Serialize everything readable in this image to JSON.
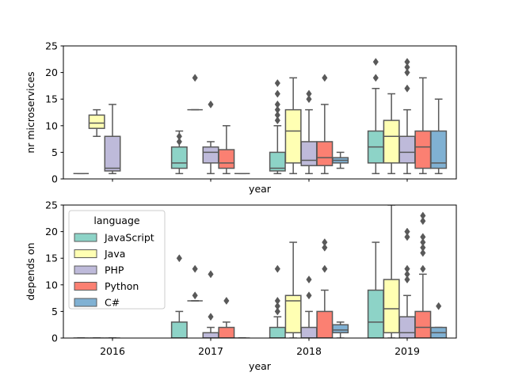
{
  "colors": {
    "JavaScript": "#8dd3c7",
    "Java": "#ffffb3",
    "PHP": "#bebada",
    "Python": "#fb8072",
    "C#": "#80b1d3",
    "line": "#595959"
  },
  "chart_data": [
    {
      "type": "box",
      "panel": "top",
      "xlabel": "year",
      "ylabel": "nr microservices",
      "ylim": [
        0,
        25
      ],
      "yticks": [
        0,
        5,
        10,
        15,
        20,
        25
      ],
      "categories": [
        "2016",
        "2017",
        "2018",
        "2019"
      ],
      "show_x_tick_labels": false,
      "legend": null,
      "series": [
        {
          "name": "JavaScript",
          "boxes": [
            {
              "year": "2016",
              "min": 1,
              "q1": 1,
              "median": 1,
              "q3": 1,
              "max": 1,
              "outliers": []
            },
            {
              "year": "2017",
              "min": 1,
              "q1": 2,
              "median": 3,
              "q3": 6,
              "max": 9,
              "outliers": [
                7,
                8
              ]
            },
            {
              "year": "2018",
              "min": 1,
              "q1": 1.5,
              "median": 2,
              "q3": 5,
              "max": 10,
              "outliers": [
                11,
                12,
                13,
                14,
                16,
                18
              ]
            },
            {
              "year": "2019",
              "min": 1,
              "q1": 3,
              "median": 6,
              "q3": 9,
              "max": 17,
              "outliers": [
                19,
                22
              ]
            }
          ]
        },
        {
          "name": "Java",
          "boxes": [
            {
              "year": "2016",
              "min": 8,
              "q1": 9.5,
              "median": 10.5,
              "q3": 12,
              "max": 13,
              "outliers": []
            },
            {
              "year": "2017",
              "min": 13,
              "q1": 13,
              "median": 13,
              "q3": 13,
              "max": 13,
              "outliers": [
                19
              ]
            },
            {
              "year": "2018",
              "min": 1,
              "q1": 3,
              "median": 9,
              "q3": 13,
              "max": 19,
              "outliers": []
            },
            {
              "year": "2019",
              "min": 1,
              "q1": 3,
              "median": 8,
              "q3": 11,
              "max": 16,
              "outliers": []
            }
          ]
        },
        {
          "name": "PHP",
          "boxes": [
            {
              "year": "2016",
              "min": 1,
              "q1": 1.5,
              "median": 2,
              "q3": 8,
              "max": 14,
              "outliers": []
            },
            {
              "year": "2017",
              "min": 1,
              "q1": 3,
              "median": 5,
              "q3": 6,
              "max": 7,
              "outliers": [
                14
              ]
            },
            {
              "year": "2018",
              "min": 1,
              "q1": 2.5,
              "median": 3.5,
              "q3": 7,
              "max": 13,
              "outliers": [
                15,
                16
              ]
            },
            {
              "year": "2019",
              "min": 1,
              "q1": 3,
              "median": 5,
              "q3": 8,
              "max": 13,
              "outliers": [
                17,
                20,
                21,
                22
              ]
            }
          ]
        },
        {
          "name": "Python",
          "boxes": [
            {
              "year": "2017",
              "min": 1,
              "q1": 2,
              "median": 3,
              "q3": 5.5,
              "max": 10,
              "outliers": []
            },
            {
              "year": "2018",
              "min": 1,
              "q1": 2.5,
              "median": 4,
              "q3": 7,
              "max": 14,
              "outliers": [
                19
              ]
            },
            {
              "year": "2019",
              "min": 1,
              "q1": 2,
              "median": 6,
              "q3": 9,
              "max": 19,
              "outliers": []
            }
          ]
        },
        {
          "name": "C#",
          "boxes": [
            {
              "year": "2017",
              "min": 1,
              "q1": 1,
              "median": 1,
              "q3": 1,
              "max": 1,
              "outliers": []
            },
            {
              "year": "2018",
              "min": 2,
              "q1": 3,
              "median": 3.5,
              "q3": 4,
              "max": 5,
              "outliers": []
            },
            {
              "year": "2019",
              "min": 1,
              "q1": 2,
              "median": 3,
              "q3": 9,
              "max": 15,
              "outliers": []
            }
          ]
        }
      ]
    },
    {
      "type": "box",
      "panel": "bottom",
      "xlabel": "year",
      "ylabel": "depends on",
      "ylim": [
        0,
        25
      ],
      "yticks": [
        0,
        5,
        10,
        15,
        20,
        25
      ],
      "categories": [
        "2016",
        "2017",
        "2018",
        "2019"
      ],
      "show_x_tick_labels": true,
      "legend": {
        "title": "language",
        "placement": "upper-left",
        "entries": [
          "JavaScript",
          "Java",
          "PHP",
          "Python",
          "C#"
        ]
      },
      "series": [
        {
          "name": "JavaScript",
          "boxes": [
            {
              "year": "2016",
              "min": 0,
              "q1": 0,
              "median": 0,
              "q3": 0,
              "max": 0,
              "outliers": []
            },
            {
              "year": "2017",
              "min": 0,
              "q1": 0,
              "median": 0,
              "q3": 3,
              "max": 5,
              "outliers": [
                15
              ]
            },
            {
              "year": "2018",
              "min": 0,
              "q1": 0,
              "median": 0,
              "q3": 2,
              "max": 4,
              "outliers": [
                5,
                6,
                7,
                13
              ]
            },
            {
              "year": "2019",
              "min": 0,
              "q1": 0,
              "median": 3,
              "q3": 9,
              "max": 18,
              "outliers": []
            }
          ]
        },
        {
          "name": "Java",
          "boxes": [
            {
              "year": "2016",
              "min": 0,
              "q1": 0,
              "median": 0,
              "q3": 0,
              "max": 0,
              "outliers": []
            },
            {
              "year": "2017",
              "min": 7,
              "q1": 7,
              "median": 7,
              "q3": 7,
              "max": 7,
              "outliers": [
                8,
                13
              ]
            },
            {
              "year": "2018",
              "min": 0,
              "q1": 1,
              "median": 7,
              "q3": 8,
              "max": 18,
              "outliers": []
            },
            {
              "year": "2019",
              "min": 0,
              "q1": 1,
              "median": 5.5,
              "q3": 11,
              "max": 25,
              "outliers": []
            }
          ]
        },
        {
          "name": "PHP",
          "boxes": [
            {
              "year": "2016",
              "min": 0,
              "q1": 0,
              "median": 0,
              "q3": 0,
              "max": 0,
              "outliers": []
            },
            {
              "year": "2017",
              "min": 0,
              "q1": 0,
              "median": 0,
              "q3": 1,
              "max": 2,
              "outliers": [
                4,
                12
              ]
            },
            {
              "year": "2018",
              "min": 0,
              "q1": 0,
              "median": 0,
              "q3": 2,
              "max": 5,
              "outliers": [
                8,
                11
              ]
            },
            {
              "year": "2019",
              "min": 0,
              "q1": 0,
              "median": 1,
              "q3": 4,
              "max": 8,
              "outliers": [
                11,
                12,
                13,
                19,
                20
              ]
            }
          ]
        },
        {
          "name": "Python",
          "boxes": [
            {
              "year": "2017",
              "min": 0,
              "q1": 0,
              "median": 0,
              "q3": 2,
              "max": 3,
              "outliers": [
                7
              ]
            },
            {
              "year": "2018",
              "min": 0,
              "q1": 0,
              "median": 0,
              "q3": 5,
              "max": 9,
              "outliers": [
                13,
                17,
                18
              ]
            },
            {
              "year": "2019",
              "min": 0,
              "q1": 0,
              "median": 2,
              "q3": 5,
              "max": 12,
              "outliers": [
                13,
                16,
                17,
                18,
                19,
                22,
                23
              ]
            }
          ]
        },
        {
          "name": "C#",
          "boxes": [
            {
              "year": "2017",
              "min": 0,
              "q1": 0,
              "median": 0,
              "q3": 0,
              "max": 0,
              "outliers": []
            },
            {
              "year": "2018",
              "min": 0,
              "q1": 1,
              "median": 1.5,
              "q3": 2.5,
              "max": 3,
              "outliers": []
            },
            {
              "year": "2019",
              "min": 0,
              "q1": 0,
              "median": 1,
              "q3": 2,
              "max": 2,
              "outliers": [
                6
              ]
            }
          ]
        }
      ]
    }
  ]
}
